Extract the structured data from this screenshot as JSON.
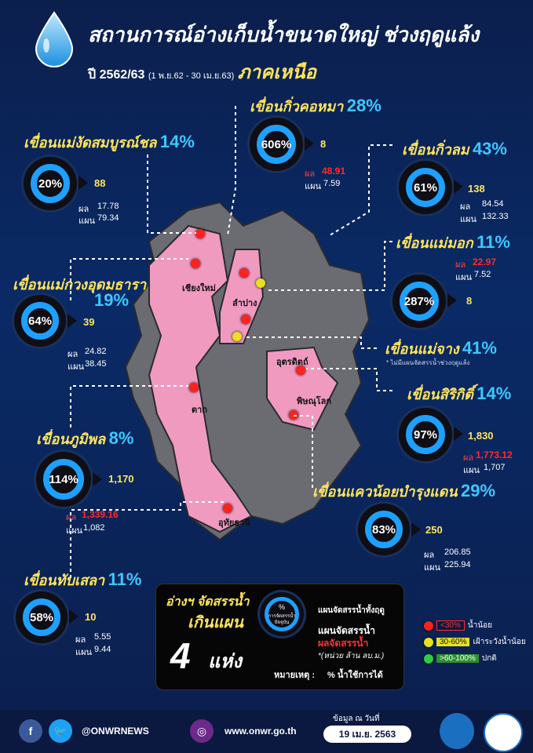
{
  "header": {
    "title": "สถานการณ์อ่างเก็บน้ำขนาดใหญ่ ช่วงฤดูแล้ง",
    "subtitle_year": "ปี 2562/63",
    "subtitle_range": "(1 พ.ย.62 - 30 เม.ย.63)",
    "region": "ภาคเหนือ"
  },
  "dams": [
    {
      "name": "เขื่อนแม่งัดสมบูรณ์ชล",
      "pct": "14%",
      "gauge": "20%",
      "top": "88",
      "result": "17.78",
      "plan": "79.34"
    },
    {
      "name": "เขื่อนกิ่วคอหมา",
      "pct": "28%",
      "gauge": "606%",
      "top": "8",
      "result": "48.91",
      "plan": "7.59"
    },
    {
      "name": "เขื่อนกิ่วลม",
      "pct": "43%",
      "gauge": "61%",
      "top": "138",
      "result": "84.54",
      "plan": "132.33"
    },
    {
      "name": "เขื่อนแม่กวงอุดมธารา",
      "pct": "19%",
      "gauge": "64%",
      "top": "39",
      "result": "24.82",
      "plan": "38.45"
    },
    {
      "name": "เขื่อนแม่มอก",
      "pct": "11%",
      "gauge": "287%",
      "top": "8",
      "result": "22.97",
      "plan": "7.52"
    },
    {
      "name": "เขื่อนแม่จาง",
      "pct": "41%",
      "note": "* ไม่มีแผนจัดสรรน้ำช่วงฤดูแล้ง"
    },
    {
      "name": "เขื่อนสิริกิติ์",
      "pct": "14%",
      "gauge": "97%",
      "top": "1,830",
      "result": "1,773.12",
      "plan": "1,707"
    },
    {
      "name": "เขื่อนภูมิพล",
      "pct": "8%",
      "gauge": "114%",
      "top": "1,170",
      "result": "1,339.16",
      "plan": "1,082"
    },
    {
      "name": "เขื่อนแควน้อยบำรุงแดน",
      "pct": "29%",
      "gauge": "83%",
      "top": "250",
      "result": "206.85",
      "plan": "225.94"
    },
    {
      "name": "เขื่อนทับเสลา",
      "pct": "11%",
      "gauge": "58%",
      "top": "10",
      "result": "5.55",
      "plan": "9.44"
    }
  ],
  "labels": {
    "result": "ผล",
    "plan": "แผน"
  },
  "provinces": [
    "เชียงใหม่",
    "ลำปาง",
    "อุตรดิตถ์",
    "พิษณุโลก",
    "ตาก",
    "อุทัยธานี"
  ],
  "legend": {
    "head1": "อ่างฯ จัดสรรน้ำ",
    "head2": "เกินแผน",
    "count": "4",
    "unit_count": "แห่ง",
    "gauge_label1": "%",
    "gauge_label2": "การจัดสรรน้ำ",
    "gauge_label3": "ปัจจุบัน",
    "l_total": "แผนจัดสรรน้ำทั้งฤดู",
    "l_plan": "แผนจัดสรรน้ำ",
    "l_result": "ผลจัดสรรน้ำ",
    "l_unit": "*(หน่วย ล้าน ลบ.ม.)",
    "note_label": "หมายเหตุ :",
    "note_text": "% น้ำใช้การได้"
  },
  "status_legend": [
    {
      "label": "<30%",
      "desc": "น้ำน้อย",
      "color": "#ff2020"
    },
    {
      "label": "30-60%",
      "desc": "เฝ้าระวังน้ำน้อย",
      "color": "#e8e020"
    },
    {
      "label": ">60-100%",
      "desc": "ปกติ",
      "color": "#2ecc40"
    }
  ],
  "footer": {
    "social": "@ONWRNEWS",
    "website": "www.onwr.go.th",
    "date_label": "ข้อมูล ณ วันที่",
    "date": "19 เม.ย. 2563"
  }
}
